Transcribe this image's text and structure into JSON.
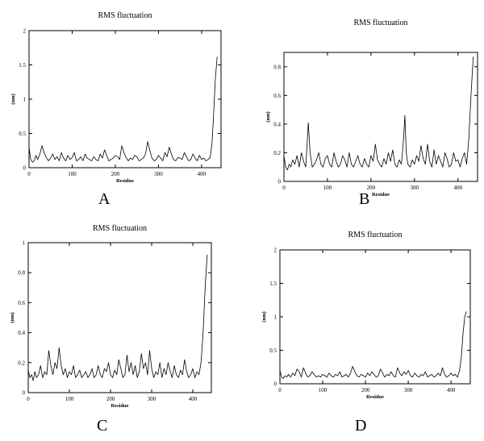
{
  "chart_data": [
    {
      "type": "line",
      "panel_label": "A",
      "title": "RMS fluctuation",
      "xlabel": "Residue",
      "ylabel": "(nm)",
      "xlim": [
        0,
        445
      ],
      "ylim": [
        0,
        2
      ],
      "xticks": [
        0,
        100,
        200,
        300,
        400
      ],
      "yticks": [
        0,
        0.5,
        1,
        1.5,
        2
      ],
      "ytick_labels": [
        "0",
        "0.5",
        "1",
        "1.5",
        "2"
      ],
      "series": [
        {
          "x": [
            0,
            4,
            8,
            12,
            16,
            20,
            25,
            30,
            35,
            40,
            45,
            50,
            55,
            60,
            65,
            70,
            75,
            80,
            85,
            90,
            95,
            100,
            105,
            110,
            115,
            120,
            125,
            130,
            135,
            140,
            145,
            150,
            155,
            160,
            165,
            170,
            175,
            180,
            185,
            190,
            195,
            200,
            205,
            210,
            215,
            220,
            225,
            230,
            235,
            240,
            245,
            250,
            255,
            260,
            265,
            270,
            275,
            280,
            285,
            290,
            295,
            300,
            305,
            310,
            315,
            320,
            325,
            330,
            335,
            340,
            345,
            350,
            355,
            360,
            365,
            370,
            375,
            380,
            385,
            390,
            395,
            400,
            405,
            410,
            415,
            420,
            424,
            428,
            432,
            436
          ],
          "y": [
            0.3,
            0.12,
            0.08,
            0.1,
            0.18,
            0.12,
            0.2,
            0.32,
            0.22,
            0.15,
            0.1,
            0.14,
            0.2,
            0.12,
            0.16,
            0.1,
            0.22,
            0.14,
            0.1,
            0.18,
            0.12,
            0.15,
            0.22,
            0.1,
            0.12,
            0.16,
            0.1,
            0.2,
            0.14,
            0.12,
            0.1,
            0.16,
            0.12,
            0.1,
            0.2,
            0.14,
            0.26,
            0.18,
            0.1,
            0.12,
            0.14,
            0.18,
            0.16,
            0.12,
            0.32,
            0.22,
            0.15,
            0.1,
            0.14,
            0.12,
            0.18,
            0.16,
            0.1,
            0.12,
            0.14,
            0.2,
            0.38,
            0.25,
            0.14,
            0.1,
            0.12,
            0.18,
            0.14,
            0.1,
            0.22,
            0.16,
            0.3,
            0.2,
            0.12,
            0.1,
            0.15,
            0.14,
            0.12,
            0.22,
            0.16,
            0.1,
            0.12,
            0.2,
            0.14,
            0.1,
            0.18,
            0.12,
            0.14,
            0.1,
            0.12,
            0.15,
            0.35,
            0.8,
            1.3,
            1.62
          ]
        }
      ]
    },
    {
      "type": "line",
      "panel_label": "B",
      "title": "RMS fluctuation",
      "xlabel": "Residue",
      "ylabel": "(nm)",
      "xlim": [
        0,
        445
      ],
      "ylim": [
        0,
        0.9
      ],
      "xticks": [
        0,
        100,
        200,
        300,
        400
      ],
      "yticks": [
        0,
        0.2,
        0.4,
        0.6,
        0.8
      ],
      "ytick_labels": [
        "0",
        "0.2",
        "0.4",
        "0.6",
        "0.8"
      ],
      "series": [
        {
          "x": [
            0,
            4,
            8,
            12,
            16,
            20,
            25,
            30,
            35,
            40,
            45,
            50,
            53,
            56,
            60,
            65,
            70,
            75,
            80,
            85,
            90,
            95,
            100,
            105,
            110,
            115,
            120,
            125,
            130,
            135,
            140,
            145,
            150,
            155,
            160,
            165,
            170,
            175,
            180,
            185,
            190,
            195,
            200,
            205,
            210,
            215,
            220,
            225,
            230,
            235,
            240,
            245,
            250,
            255,
            260,
            265,
            270,
            275,
            278,
            281,
            285,
            290,
            295,
            300,
            305,
            310,
            315,
            320,
            325,
            330,
            335,
            340,
            345,
            350,
            355,
            360,
            365,
            370,
            375,
            380,
            385,
            390,
            395,
            400,
            405,
            410,
            415,
            420,
            425,
            430,
            435
          ],
          "y": [
            0.18,
            0.1,
            0.08,
            0.12,
            0.1,
            0.15,
            0.12,
            0.18,
            0.1,
            0.2,
            0.14,
            0.1,
            0.25,
            0.41,
            0.2,
            0.1,
            0.12,
            0.15,
            0.2,
            0.12,
            0.1,
            0.16,
            0.18,
            0.12,
            0.1,
            0.2,
            0.14,
            0.1,
            0.12,
            0.18,
            0.15,
            0.1,
            0.2,
            0.12,
            0.1,
            0.14,
            0.18,
            0.12,
            0.1,
            0.16,
            0.12,
            0.1,
            0.18,
            0.14,
            0.26,
            0.15,
            0.12,
            0.1,
            0.16,
            0.12,
            0.2,
            0.14,
            0.22,
            0.12,
            0.1,
            0.15,
            0.12,
            0.3,
            0.46,
            0.2,
            0.12,
            0.1,
            0.15,
            0.12,
            0.18,
            0.14,
            0.25,
            0.16,
            0.12,
            0.26,
            0.14,
            0.1,
            0.22,
            0.12,
            0.18,
            0.14,
            0.1,
            0.2,
            0.16,
            0.1,
            0.12,
            0.2,
            0.14,
            0.15,
            0.1,
            0.16,
            0.2,
            0.12,
            0.3,
            0.6,
            0.87
          ]
        }
      ]
    },
    {
      "type": "line",
      "panel_label": "C",
      "title": "RMS fluctuation",
      "xlabel": "Residue",
      "ylabel": "(nm)",
      "xlim": [
        0,
        445
      ],
      "ylim": [
        0,
        1
      ],
      "xticks": [
        0,
        100,
        200,
        300,
        400
      ],
      "yticks": [
        0,
        0.2,
        0.4,
        0.6,
        0.8,
        1
      ],
      "ytick_labels": [
        "0",
        "0.2",
        "0.4",
        "0.6",
        "0.8",
        "1"
      ],
      "series": [
        {
          "x": [
            0,
            4,
            8,
            12,
            16,
            20,
            25,
            30,
            35,
            40,
            45,
            50,
            55,
            60,
            65,
            70,
            75,
            80,
            85,
            90,
            95,
            100,
            105,
            110,
            115,
            120,
            125,
            130,
            135,
            140,
            145,
            150,
            155,
            160,
            165,
            170,
            175,
            180,
            185,
            190,
            195,
            200,
            205,
            210,
            215,
            220,
            225,
            230,
            235,
            240,
            245,
            250,
            255,
            260,
            265,
            270,
            275,
            280,
            285,
            290,
            295,
            300,
            305,
            310,
            315,
            320,
            325,
            330,
            335,
            340,
            345,
            350,
            355,
            360,
            365,
            370,
            375,
            380,
            385,
            390,
            395,
            400,
            405,
            410,
            415,
            420,
            425,
            430,
            435
          ],
          "y": [
            0.15,
            0.1,
            0.12,
            0.08,
            0.14,
            0.1,
            0.12,
            0.18,
            0.1,
            0.14,
            0.12,
            0.28,
            0.18,
            0.12,
            0.2,
            0.16,
            0.3,
            0.18,
            0.12,
            0.16,
            0.1,
            0.14,
            0.12,
            0.18,
            0.1,
            0.12,
            0.15,
            0.1,
            0.12,
            0.14,
            0.1,
            0.12,
            0.16,
            0.1,
            0.12,
            0.18,
            0.12,
            0.1,
            0.16,
            0.14,
            0.2,
            0.12,
            0.1,
            0.15,
            0.12,
            0.22,
            0.16,
            0.1,
            0.12,
            0.25,
            0.14,
            0.2,
            0.12,
            0.18,
            0.1,
            0.14,
            0.26,
            0.16,
            0.2,
            0.12,
            0.28,
            0.16,
            0.1,
            0.14,
            0.12,
            0.2,
            0.1,
            0.16,
            0.12,
            0.2,
            0.14,
            0.1,
            0.18,
            0.12,
            0.1,
            0.15,
            0.12,
            0.22,
            0.14,
            0.1,
            0.12,
            0.16,
            0.1,
            0.14,
            0.12,
            0.2,
            0.4,
            0.7,
            0.92
          ]
        }
      ]
    },
    {
      "type": "line",
      "panel_label": "D",
      "title": "RMS fluctuation",
      "xlabel": "Residue",
      "ylabel": "(nm)",
      "xlim": [
        0,
        445
      ],
      "ylim": [
        0,
        2
      ],
      "xticks": [
        0,
        100,
        200,
        300,
        400
      ],
      "yticks": [
        0,
        0.5,
        1,
        1.5,
        2
      ],
      "ytick_labels": [
        "0",
        "0.5",
        "1",
        "1.5",
        "2"
      ],
      "series": [
        {
          "x": [
            0,
            4,
            8,
            12,
            16,
            20,
            25,
            30,
            35,
            40,
            45,
            50,
            55,
            60,
            65,
            70,
            75,
            80,
            85,
            90,
            95,
            100,
            105,
            110,
            115,
            120,
            125,
            130,
            135,
            140,
            145,
            150,
            155,
            160,
            165,
            170,
            175,
            180,
            185,
            190,
            195,
            200,
            205,
            210,
            215,
            220,
            225,
            230,
            235,
            240,
            245,
            250,
            255,
            260,
            265,
            270,
            275,
            280,
            285,
            290,
            295,
            300,
            305,
            310,
            315,
            320,
            325,
            330,
            335,
            340,
            345,
            350,
            355,
            360,
            365,
            370,
            375,
            380,
            385,
            390,
            395,
            400,
            405,
            410,
            415,
            420,
            424,
            428,
            432,
            436
          ],
          "y": [
            0.2,
            0.1,
            0.08,
            0.12,
            0.1,
            0.14,
            0.1,
            0.16,
            0.12,
            0.22,
            0.18,
            0.1,
            0.24,
            0.16,
            0.1,
            0.12,
            0.18,
            0.14,
            0.1,
            0.12,
            0.1,
            0.14,
            0.12,
            0.1,
            0.16,
            0.12,
            0.1,
            0.14,
            0.12,
            0.18,
            0.1,
            0.12,
            0.14,
            0.1,
            0.16,
            0.26,
            0.18,
            0.12,
            0.1,
            0.14,
            0.12,
            0.1,
            0.16,
            0.12,
            0.18,
            0.14,
            0.1,
            0.12,
            0.22,
            0.16,
            0.1,
            0.14,
            0.12,
            0.18,
            0.12,
            0.1,
            0.24,
            0.16,
            0.12,
            0.18,
            0.14,
            0.2,
            0.12,
            0.1,
            0.16,
            0.12,
            0.1,
            0.14,
            0.12,
            0.18,
            0.1,
            0.12,
            0.14,
            0.1,
            0.12,
            0.16,
            0.12,
            0.24,
            0.14,
            0.1,
            0.12,
            0.16,
            0.12,
            0.14,
            0.1,
            0.2,
            0.4,
            0.75,
            1.0,
            1.08
          ]
        }
      ]
    }
  ]
}
